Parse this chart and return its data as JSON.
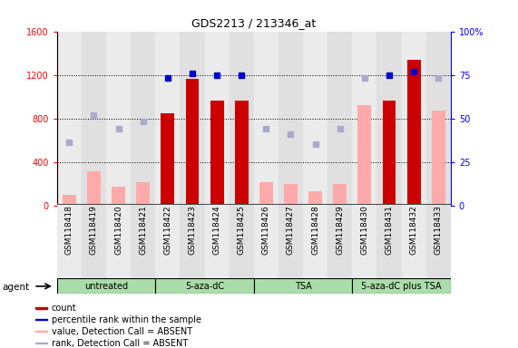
{
  "title": "GDS2213 / 213346_at",
  "samples": [
    "GSM118418",
    "GSM118419",
    "GSM118420",
    "GSM118421",
    "GSM118422",
    "GSM118423",
    "GSM118424",
    "GSM118425",
    "GSM118426",
    "GSM118427",
    "GSM118428",
    "GSM118429",
    "GSM118430",
    "GSM118431",
    "GSM118432",
    "GSM118433"
  ],
  "count_values": [
    null,
    null,
    null,
    null,
    850,
    1160,
    960,
    960,
    null,
    null,
    null,
    null,
    null,
    960,
    1340,
    null
  ],
  "count_absent": [
    100,
    310,
    170,
    210,
    null,
    null,
    null,
    null,
    210,
    200,
    130,
    200,
    920,
    null,
    null,
    870
  ],
  "rank_pct_present": [
    null,
    null,
    null,
    null,
    73,
    76,
    75,
    75,
    null,
    null,
    null,
    null,
    null,
    75,
    77,
    null
  ],
  "rank_pct_absent": [
    36,
    52,
    44,
    48,
    null,
    null,
    null,
    null,
    44,
    41,
    35,
    44,
    73,
    null,
    null,
    73
  ],
  "groups": [
    {
      "label": "untreated",
      "start": 0,
      "end": 3
    },
    {
      "label": "5-aza-dC",
      "start": 4,
      "end": 7
    },
    {
      "label": "TSA",
      "start": 8,
      "end": 11
    },
    {
      "label": "5-aza-dC plus TSA",
      "start": 12,
      "end": 15
    }
  ],
  "ylim_left": [
    0,
    1600
  ],
  "ylim_right": [
    0,
    100
  ],
  "yticks_left": [
    0,
    400,
    800,
    1200,
    1600
  ],
  "yticks_right": [
    0,
    25,
    50,
    75,
    100
  ],
  "bar_color_present": "#cc0000",
  "bar_color_absent": "#ffaaaa",
  "rank_color_present": "#0000cc",
  "rank_color_absent": "#aaaacc",
  "bar_width": 0.55,
  "group_color": "#aaddaa"
}
